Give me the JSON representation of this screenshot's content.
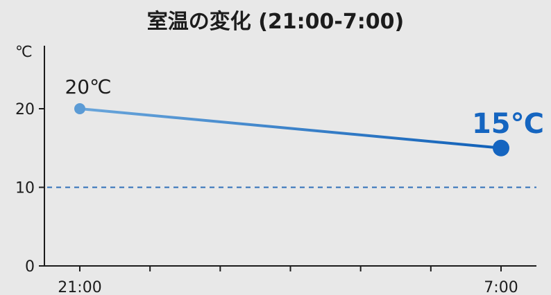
{
  "chart_data": {
    "type": "line",
    "title": "室温の変化 (21:00-7:00)",
    "y_unit_label": "℃",
    "x_ticks": [
      "21:00",
      "7:00"
    ],
    "y_ticks": [
      "0",
      "10",
      "20"
    ],
    "ylim": [
      0,
      30
    ],
    "x": [
      "21:00",
      "7:00"
    ],
    "values": [
      20,
      15
    ],
    "data_labels": [
      "20℃",
      "15℃"
    ],
    "reference_line": {
      "y": 10,
      "style": "dashed"
    },
    "grid": false,
    "colors": {
      "start_point": "#5b9bd5",
      "end_point": "#1565c0",
      "line_start": "#6aa6db",
      "line_end": "#1060b8",
      "reference_line": "#2f6fb8",
      "highlight_label": "#1565c0",
      "axis": "#1c1c1c"
    }
  }
}
